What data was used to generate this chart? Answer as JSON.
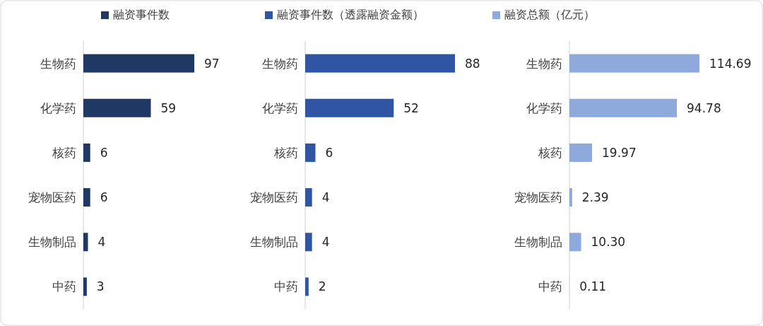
{
  "chart_data": [
    {
      "type": "bar",
      "orientation": "horizontal",
      "categories": [
        "生物药",
        "化学药",
        "核药",
        "宠物医药",
        "生物制品",
        "中药"
      ],
      "legend": "top",
      "data_labels": true,
      "series": [
        {
          "name": "融资事件数",
          "color": "#203864",
          "values": [
            97,
            59,
            6,
            6,
            4,
            3
          ]
        }
      ]
    },
    {
      "type": "bar",
      "orientation": "horizontal",
      "categories": [
        "生物药",
        "化学药",
        "核药",
        "宠物医药",
        "生物制品",
        "中药"
      ],
      "legend": "top",
      "data_labels": true,
      "series": [
        {
          "name": "融资事件数（透露融资金额）",
          "color": "#2f55a4",
          "values": [
            88,
            52,
            6,
            4,
            4,
            2
          ]
        }
      ]
    },
    {
      "type": "bar",
      "orientation": "horizontal",
      "categories": [
        "生物药",
        "化学药",
        "核药",
        "宠物医药",
        "生物制品",
        "中药"
      ],
      "legend": "top",
      "series": [
        {
          "name": "融资总额（亿元）",
          "color": "#8eaadc",
          "values": [
            114.69,
            94.78,
            19.97,
            2.39,
            10.3,
            0.11
          ],
          "value_labels": [
            "114.69",
            "94.78",
            "19.97",
            "2.39",
            "10.30",
            "0.11"
          ]
        }
      ]
    }
  ]
}
